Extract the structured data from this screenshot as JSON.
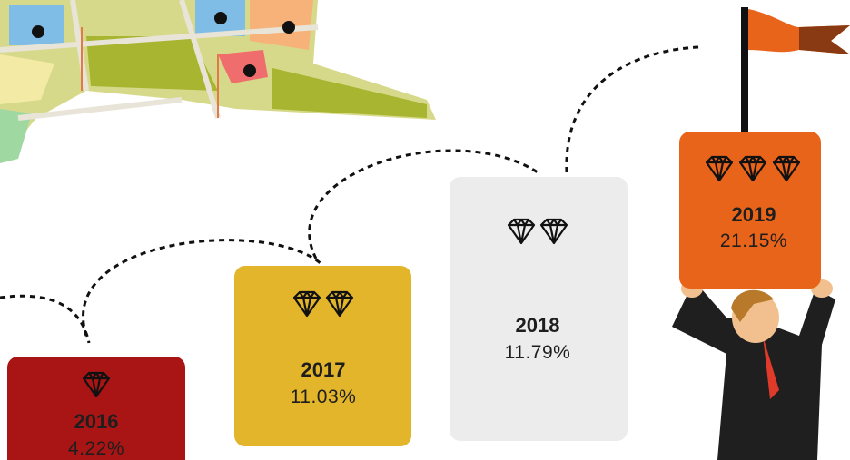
{
  "steps": [
    {
      "year": "2016",
      "value": "4.22%"
    },
    {
      "year": "2017",
      "value": "11.03%"
    },
    {
      "year": "2018",
      "value": "11.79%"
    },
    {
      "year": "2019",
      "value": "21.15%"
    }
  ]
}
